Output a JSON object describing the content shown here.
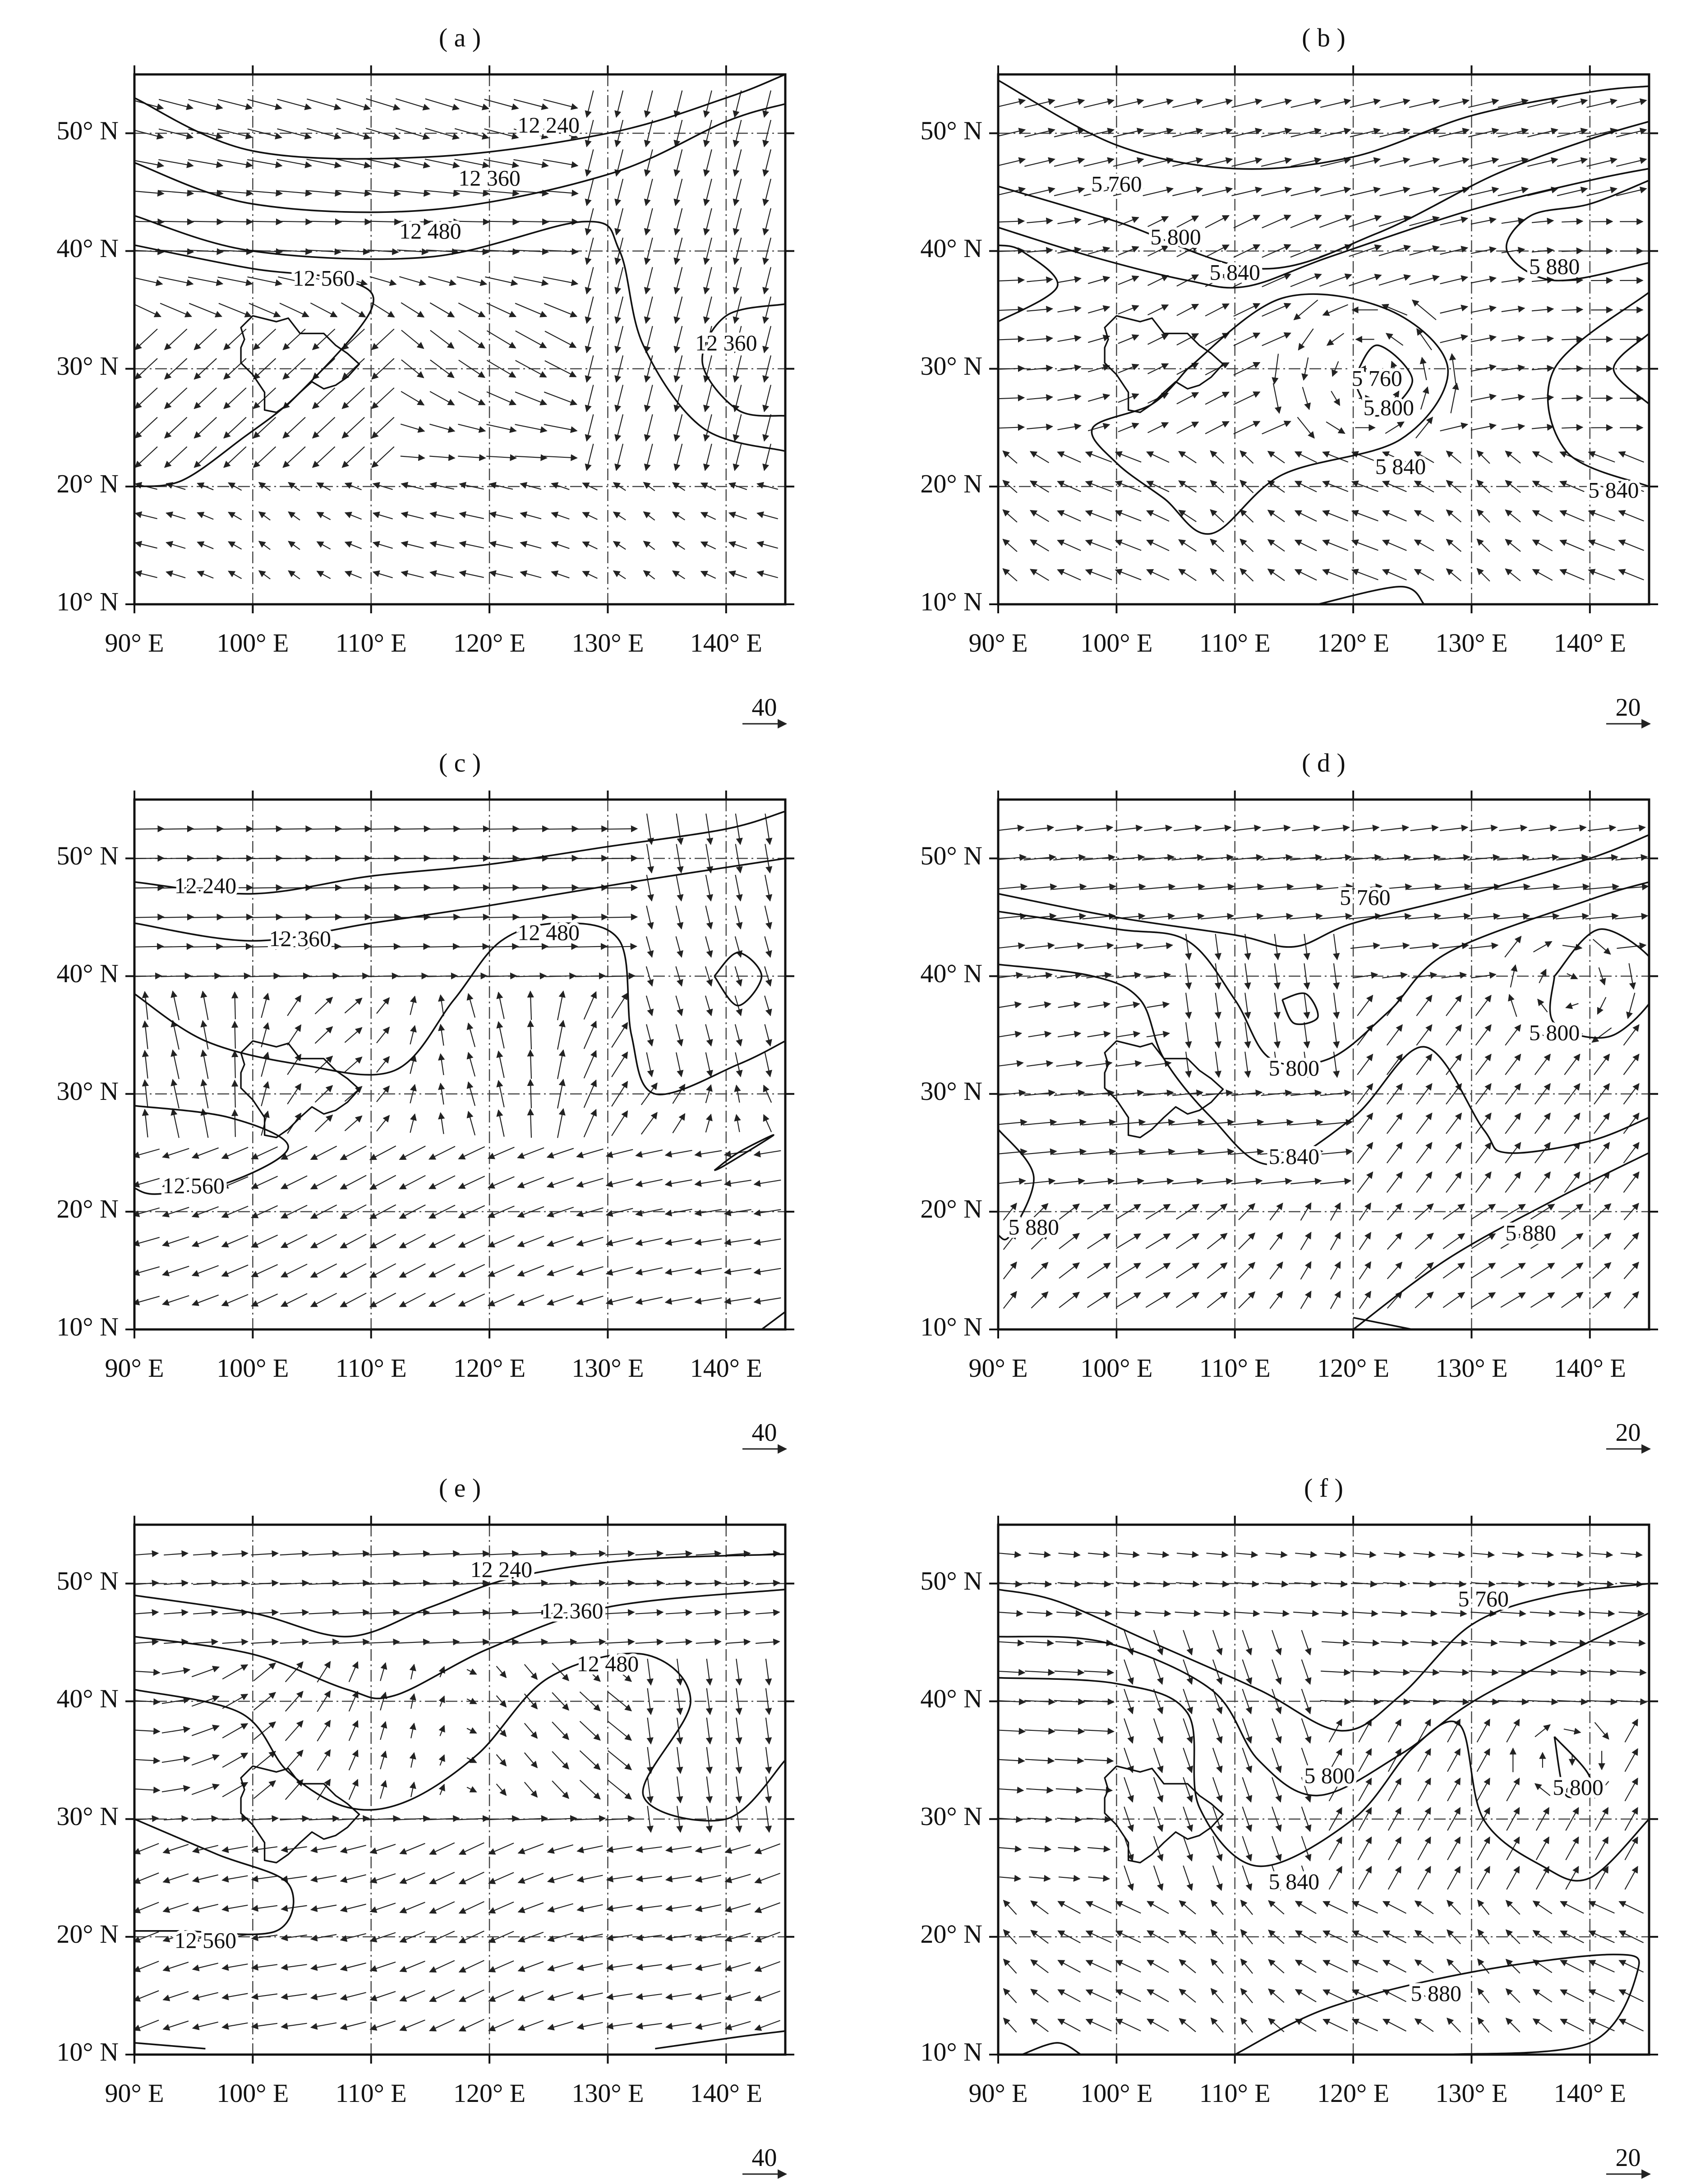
{
  "figure": {
    "panels": [
      {
        "id": "a",
        "title": "( a )",
        "x_ticks": [
          "90° E",
          "100° E",
          "110° E",
          "120° E",
          "130° E",
          "140° E"
        ],
        "y_ticks": [
          "10° N",
          "20° N",
          "30° N",
          "40° N",
          "50° N"
        ],
        "contour_labels": [
          {
            "text": "12 240",
            "lon": 125,
            "lat": 50.5
          },
          {
            "text": "12 360",
            "lon": 120,
            "lat": 46.0
          },
          {
            "text": "12 480",
            "lon": 115,
            "lat": 41.5
          },
          {
            "text": "12 560",
            "lon": 106,
            "lat": 37.5
          },
          {
            "text": "12 360",
            "lon": 140,
            "lat": 32.0
          }
        ],
        "scale_arrow": "40"
      },
      {
        "id": "b",
        "title": "( b )",
        "x_ticks": [
          "90° E",
          "100° E",
          "110° E",
          "120° E",
          "130° E",
          "140° E"
        ],
        "y_ticks": [
          "10° N",
          "20° N",
          "30° N",
          "40° N",
          "50° N"
        ],
        "contour_labels": [
          {
            "text": "5 760",
            "lon": 100,
            "lat": 45.5
          },
          {
            "text": "5 800",
            "lon": 105,
            "lat": 41.0
          },
          {
            "text": "5 840",
            "lon": 110,
            "lat": 38.0
          },
          {
            "text": "5 880",
            "lon": 137,
            "lat": 38.5
          },
          {
            "text": "5 760",
            "lon": 122,
            "lat": 29.0
          },
          {
            "text": "5 800",
            "lon": 123,
            "lat": 26.5
          },
          {
            "text": "5 840",
            "lon": 124,
            "lat": 21.5
          },
          {
            "text": "5 840",
            "lon": 142,
            "lat": 19.5
          }
        ],
        "scale_arrow": "20"
      },
      {
        "id": "c",
        "title": "( c )",
        "x_ticks": [
          "90° E",
          "100° E",
          "110° E",
          "120° E",
          "130° E",
          "140° E"
        ],
        "y_ticks": [
          "10° N",
          "20° N",
          "30° N",
          "40° N",
          "50° N"
        ],
        "contour_labels": [
          {
            "text": "12 240",
            "lon": 96,
            "lat": 47.5
          },
          {
            "text": "12 360",
            "lon": 104,
            "lat": 43.0
          },
          {
            "text": "12 480",
            "lon": 125,
            "lat": 43.5
          },
          {
            "text": "12 560",
            "lon": 95,
            "lat": 22.0
          }
        ],
        "scale_arrow": "40"
      },
      {
        "id": "d",
        "title": "( d )",
        "x_ticks": [
          "90° E",
          "100° E",
          "110° E",
          "120° E",
          "130° E",
          "140° E"
        ],
        "y_ticks": [
          "10° N",
          "20° N",
          "30° N",
          "40° N",
          "50° N"
        ],
        "contour_labels": [
          {
            "text": "5 760",
            "lon": 121,
            "lat": 46.5
          },
          {
            "text": "5 800",
            "lon": 115,
            "lat": 32.0
          },
          {
            "text": "5 800",
            "lon": 137,
            "lat": 35.0
          },
          {
            "text": "5 840",
            "lon": 115,
            "lat": 24.5
          },
          {
            "text": "5 880",
            "lon": 93,
            "lat": 18.5
          },
          {
            "text": "5 880",
            "lon": 135,
            "lat": 18.0
          }
        ],
        "scale_arrow": "20"
      },
      {
        "id": "e",
        "title": "( e )",
        "x_ticks": [
          "90° E",
          "100° E",
          "110° E",
          "120° E",
          "130° E",
          "140° E"
        ],
        "y_ticks": [
          "10° N",
          "20° N",
          "30° N",
          "40° N",
          "50° N"
        ],
        "contour_labels": [
          {
            "text": "12 240",
            "lon": 121,
            "lat": 51.0
          },
          {
            "text": "12 360",
            "lon": 127,
            "lat": 47.5
          },
          {
            "text": "12 480",
            "lon": 130,
            "lat": 43.0
          },
          {
            "text": "12 560",
            "lon": 96,
            "lat": 19.5
          }
        ],
        "scale_arrow": "40"
      },
      {
        "id": "f",
        "title": "( f )",
        "x_ticks": [
          "90° E",
          "100° E",
          "110° E",
          "120° E",
          "130° E",
          "140° E"
        ],
        "y_ticks": [
          "10° N",
          "20° N",
          "30° N",
          "40° N",
          "50° N"
        ],
        "contour_labels": [
          {
            "text": "5 760",
            "lon": 131,
            "lat": 48.5
          },
          {
            "text": "5 800",
            "lon": 118,
            "lat": 33.5
          },
          {
            "text": "5 800",
            "lon": 139,
            "lat": 32.5
          },
          {
            "text": "5 840",
            "lon": 115,
            "lat": 24.5
          },
          {
            "text": "5 880",
            "lon": 127,
            "lat": 15.0
          }
        ],
        "scale_arrow": "20"
      }
    ]
  }
}
